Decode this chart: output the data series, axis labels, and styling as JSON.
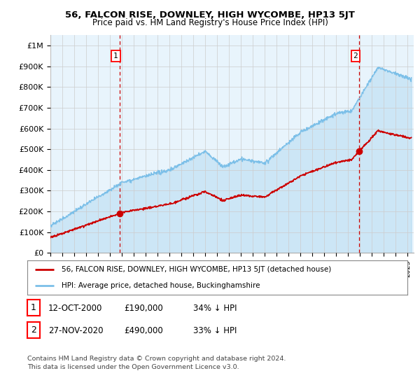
{
  "title": "56, FALCON RISE, DOWNLEY, HIGH WYCOMBE, HP13 5JT",
  "subtitle": "Price paid vs. HM Land Registry's House Price Index (HPI)",
  "ylabel_ticks": [
    "£0",
    "£100K",
    "£200K",
    "£300K",
    "£400K",
    "£500K",
    "£600K",
    "£700K",
    "£800K",
    "£900K",
    "£1M"
  ],
  "ytick_values": [
    0,
    100000,
    200000,
    300000,
    400000,
    500000,
    600000,
    700000,
    800000,
    900000,
    1000000
  ],
  "ylim": [
    0,
    1050000
  ],
  "xlim_start": 1995.0,
  "xlim_end": 2025.5,
  "hpi_color": "#7bbfe8",
  "hpi_fill_color": "#daeeff",
  "price_color": "#cc0000",
  "marker1_date": 2000.79,
  "marker1_price": 190000,
  "marker2_date": 2020.92,
  "marker2_price": 490000,
  "legend_line1": "56, FALCON RISE, DOWNLEY, HIGH WYCOMBE, HP13 5JT (detached house)",
  "legend_line2": "HPI: Average price, detached house, Buckinghamshire",
  "table_row1": [
    "1",
    "12-OCT-2000",
    "£190,000",
    "34% ↓ HPI"
  ],
  "table_row2": [
    "2",
    "27-NOV-2020",
    "£490,000",
    "33% ↓ HPI"
  ],
  "footnote": "Contains HM Land Registry data © Crown copyright and database right 2024.\nThis data is licensed under the Open Government Licence v3.0.",
  "background_color": "#ffffff",
  "grid_color": "#cccccc"
}
